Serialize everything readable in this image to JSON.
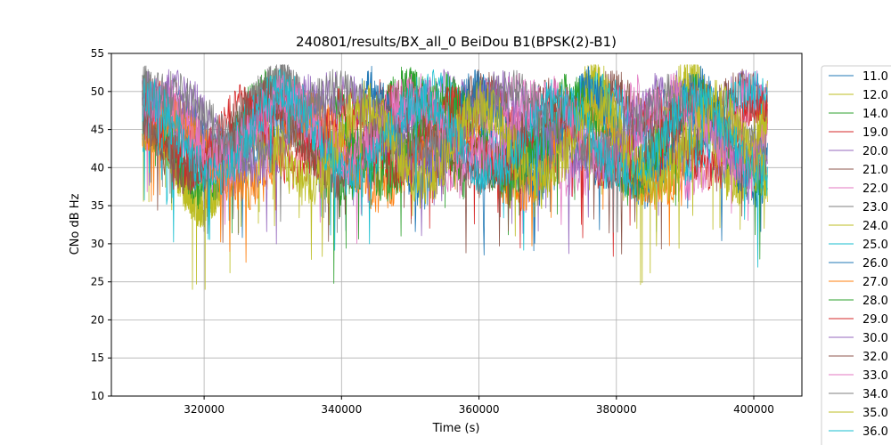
{
  "chart_data": {
    "type": "line",
    "title": "240801/results/BX_all_0 BeiDou B1(BPSK(2)-B1)",
    "xlabel": "Time (s)",
    "ylabel": "CNo dB Hz",
    "xlim": [
      306500,
      407000
    ],
    "ylim": [
      10,
      55
    ],
    "xticks": [
      320000,
      340000,
      360000,
      380000,
      400000
    ],
    "xtick_labels": [
      "320000",
      "340000",
      "360000",
      "380000",
      "400000"
    ],
    "yticks": [
      10,
      15,
      20,
      25,
      30,
      35,
      40,
      45,
      50,
      55
    ],
    "ytick_labels": [
      "10",
      "15",
      "20",
      "25",
      "30",
      "35",
      "40",
      "45",
      "50",
      "55"
    ],
    "grid": true,
    "legend_position": "outside-right",
    "series": [
      {
        "name": "11.0",
        "color": "#1f77b4",
        "t0": 311000,
        "t1": 402000,
        "base": 44,
        "amp": 4,
        "period": 18000,
        "phase": 0.0,
        "noise": 3,
        "seed": 11
      },
      {
        "name": "12.0",
        "color": "#bcbd22",
        "t0": 311000,
        "t1": 330500,
        "base": 40,
        "amp": 5,
        "period": 15000,
        "phase": 1.1,
        "noise": 3,
        "seed": 12
      },
      {
        "name": "14.0",
        "color": "#2ca02c",
        "t0": 311000,
        "t1": 358000,
        "base": 44,
        "amp": 6,
        "period": 20000,
        "phase": 2.0,
        "noise": 3.5,
        "seed": 14
      },
      {
        "name": "19.0",
        "color": "#d62728",
        "t0": 311000,
        "t1": 372000,
        "base": 45,
        "amp": 4,
        "period": 16000,
        "phase": 0.6,
        "noise": 3,
        "seed": 19
      },
      {
        "name": "20.0",
        "color": "#9467bd",
        "t0": 311000,
        "t1": 402000,
        "base": 46,
        "amp": 4,
        "period": 22000,
        "phase": 1.5,
        "noise": 3,
        "seed": 20
      },
      {
        "name": "21.0",
        "color": "#8c564b",
        "t0": 345000,
        "t1": 402000,
        "base": 46,
        "amp": 4,
        "period": 19000,
        "phase": 2.8,
        "noise": 3,
        "seed": 21
      },
      {
        "name": "22.0",
        "color": "#e377c2",
        "t0": 311000,
        "t1": 402000,
        "base": 44,
        "amp": 5,
        "period": 17000,
        "phase": 0.3,
        "noise": 3.5,
        "seed": 22
      },
      {
        "name": "23.0",
        "color": "#7f7f7f",
        "t0": 311000,
        "t1": 340000,
        "base": 46,
        "amp": 5,
        "period": 21000,
        "phase": 1.9,
        "noise": 3,
        "seed": 23
      },
      {
        "name": "24.0",
        "color": "#bcbd22",
        "t0": 375000,
        "t1": 402000,
        "base": 45,
        "amp": 6,
        "period": 14000,
        "phase": 0.9,
        "noise": 4,
        "seed": 24
      },
      {
        "name": "25.0",
        "color": "#17becf",
        "t0": 311000,
        "t1": 402000,
        "base": 45,
        "amp": 5,
        "period": 23000,
        "phase": 2.4,
        "noise": 3,
        "seed": 25
      },
      {
        "name": "26.0",
        "color": "#1f77b4",
        "t0": 343000,
        "t1": 402000,
        "base": 44,
        "amp": 6,
        "period": 16000,
        "phase": 1.2,
        "noise": 3.5,
        "seed": 26
      },
      {
        "name": "27.0",
        "color": "#ff7f0e",
        "t0": 311000,
        "t1": 390000,
        "base": 42,
        "amp": 5,
        "period": 20000,
        "phase": 0.1,
        "noise": 3,
        "seed": 27
      },
      {
        "name": "28.0",
        "color": "#2ca02c",
        "t0": 339000,
        "t1": 402000,
        "base": 44,
        "amp": 5,
        "period": 18000,
        "phase": 2.2,
        "noise": 3.5,
        "seed": 28
      },
      {
        "name": "29.0",
        "color": "#d62728",
        "t0": 311000,
        "t1": 402000,
        "base": 44,
        "amp": 4,
        "period": 15000,
        "phase": 1.7,
        "noise": 3,
        "seed": 29
      },
      {
        "name": "30.0",
        "color": "#9467bd",
        "t0": 311000,
        "t1": 402000,
        "base": 45,
        "amp": 5,
        "period": 24000,
        "phase": 0.4,
        "noise": 3,
        "seed": 30
      },
      {
        "name": "32.0",
        "color": "#8c564b",
        "t0": 311000,
        "t1": 402000,
        "base": 44,
        "amp": 5,
        "period": 21000,
        "phase": 2.6,
        "noise": 3,
        "seed": 32
      },
      {
        "name": "33.0",
        "color": "#e377c2",
        "t0": 311000,
        "t1": 402000,
        "base": 45,
        "amp": 4,
        "period": 19000,
        "phase": 1.0,
        "noise": 3.5,
        "seed": 33
      },
      {
        "name": "34.0",
        "color": "#7f7f7f",
        "t0": 311000,
        "t1": 402000,
        "base": 46,
        "amp": 4,
        "period": 25000,
        "phase": 0.7,
        "noise": 3,
        "seed": 34
      },
      {
        "name": "35.0",
        "color": "#bcbd22",
        "t0": 330000,
        "t1": 402000,
        "base": 43,
        "amp": 5,
        "period": 17000,
        "phase": 2.9,
        "noise": 3.5,
        "seed": 35
      },
      {
        "name": "36.0",
        "color": "#17becf",
        "t0": 311000,
        "t1": 402000,
        "base": 44,
        "amp": 5,
        "period": 20000,
        "phase": 1.4,
        "noise": 3,
        "seed": 36
      }
    ]
  }
}
